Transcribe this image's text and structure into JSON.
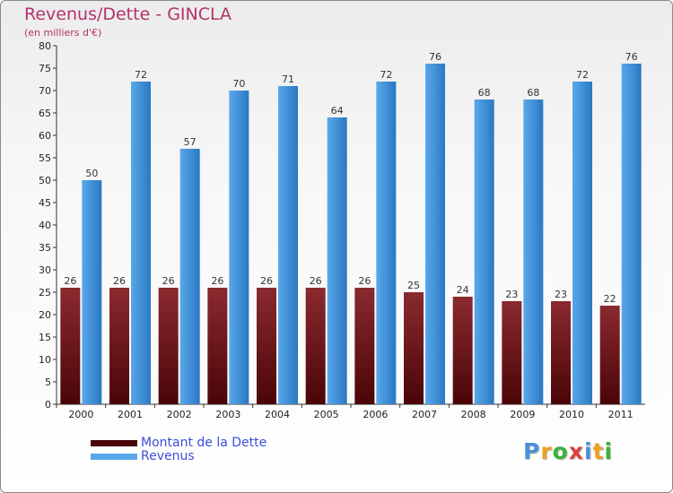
{
  "header": {
    "title": "Revenus/Dette - GINCLA",
    "subtitle": "(en milliers d'€)"
  },
  "legend": {
    "debt_label": "Montant de la Dette",
    "revenue_label": "Revenus"
  },
  "logo": {
    "text": "Proxiti"
  },
  "colors": {
    "debt_top": "#8a2a2f",
    "debt_bottom": "#4a0508",
    "revenue_top": "#5aa8ea",
    "revenue_bottom": "#2a78c2",
    "title": "#b2336a",
    "legend_text": "#3b4fd8"
  },
  "chart_data": {
    "type": "bar",
    "categories": [
      "2000",
      "2001",
      "2002",
      "2003",
      "2004",
      "2005",
      "2006",
      "2007",
      "2008",
      "2009",
      "2010",
      "2011"
    ],
    "series": [
      {
        "name": "Montant de la Dette",
        "values": [
          26,
          26,
          26,
          26,
          26,
          26,
          26,
          25,
          24,
          23,
          23,
          22
        ]
      },
      {
        "name": "Revenus",
        "values": [
          50,
          72,
          57,
          70,
          71,
          64,
          72,
          76,
          68,
          68,
          72,
          76
        ]
      }
    ],
    "title": "Revenus/Dette - GINCLA",
    "subtitle": "(en milliers d'€)",
    "xlabel": "",
    "ylabel": "",
    "ylim": [
      0,
      80
    ],
    "yticks": [
      0,
      5,
      10,
      15,
      20,
      25,
      30,
      35,
      40,
      45,
      50,
      55,
      60,
      65,
      70,
      75,
      80
    ],
    "grid": false,
    "legend_position": "bottom-left"
  }
}
